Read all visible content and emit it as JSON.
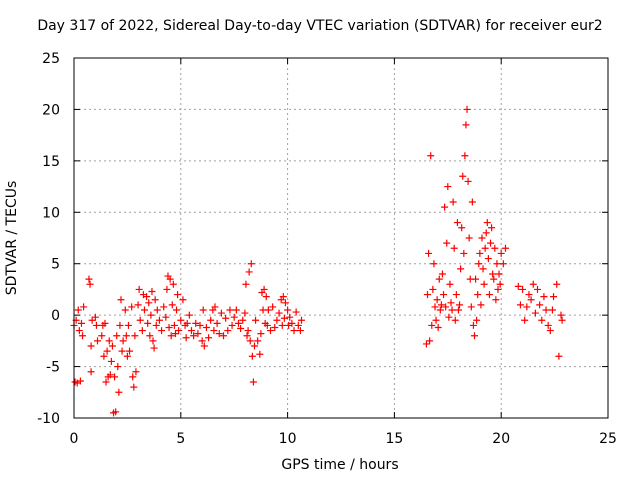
{
  "chart_data": {
    "type": "scatter",
    "title": "Day 317 of 2022, Sidereal Day-to-day VTEC variation (SDTVAR) for receiver eur2",
    "xlabel": "GPS time / hours",
    "ylabel": "SDTVAR / TECUs",
    "xlim": [
      0,
      25
    ],
    "ylim": [
      -10,
      25
    ],
    "xticks": [
      "0",
      "5",
      "10",
      "15",
      "20",
      "25"
    ],
    "yticks": [
      "-10",
      "-5",
      "0",
      "5",
      "10",
      "15",
      "20",
      "25"
    ],
    "grid": true,
    "legend": "none",
    "marker": "plus",
    "series_color": "#ff0000",
    "series": [
      {
        "name": "SDTVAR",
        "points": [
          [
            0.0,
            -1.0
          ],
          [
            0.05,
            -6.5
          ],
          [
            0.1,
            -0.5
          ],
          [
            0.15,
            -6.6
          ],
          [
            0.2,
            0.5
          ],
          [
            0.25,
            -1.5
          ],
          [
            0.3,
            -6.4
          ],
          [
            0.35,
            -0.8
          ],
          [
            0.4,
            -2.0
          ],
          [
            0.45,
            0.8
          ],
          [
            0.7,
            3.5
          ],
          [
            0.75,
            3.0
          ],
          [
            0.8,
            -3.0
          ],
          [
            0.8,
            -5.5
          ],
          [
            0.85,
            -0.5
          ],
          [
            1.0,
            -0.2
          ],
          [
            1.05,
            -1.0
          ],
          [
            1.1,
            -2.5
          ],
          [
            1.3,
            -2.0
          ],
          [
            1.35,
            -1.0
          ],
          [
            1.4,
            -4.0
          ],
          [
            1.45,
            -0.8
          ],
          [
            1.5,
            -6.5
          ],
          [
            1.55,
            -3.5
          ],
          [
            1.6,
            -6.0
          ],
          [
            1.65,
            -2.5
          ],
          [
            1.7,
            -5.8
          ],
          [
            1.75,
            -4.5
          ],
          [
            1.8,
            -3.0
          ],
          [
            1.85,
            -9.5
          ],
          [
            1.9,
            -6.0
          ],
          [
            1.95,
            -9.4
          ],
          [
            2.0,
            -2.0
          ],
          [
            2.05,
            -5.0
          ],
          [
            2.1,
            -7.5
          ],
          [
            2.15,
            -1.0
          ],
          [
            2.2,
            1.5
          ],
          [
            2.25,
            -3.5
          ],
          [
            2.3,
            -2.5
          ],
          [
            2.4,
            0.5
          ],
          [
            2.45,
            -2.0
          ],
          [
            2.5,
            -4.0
          ],
          [
            2.55,
            -1.0
          ],
          [
            2.6,
            -3.5
          ],
          [
            2.7,
            0.8
          ],
          [
            2.75,
            -6.0
          ],
          [
            2.8,
            -7.0
          ],
          [
            2.85,
            -2.0
          ],
          [
            2.9,
            -5.5
          ],
          [
            3.0,
            1.0
          ],
          [
            3.05,
            2.5
          ],
          [
            3.1,
            -0.5
          ],
          [
            3.2,
            -1.5
          ],
          [
            3.25,
            2.0
          ],
          [
            3.3,
            0.5
          ],
          [
            3.4,
            1.8
          ],
          [
            3.45,
            -0.8
          ],
          [
            3.5,
            1.2
          ],
          [
            3.55,
            -2.0
          ],
          [
            3.6,
            0.0
          ],
          [
            3.65,
            2.3
          ],
          [
            3.7,
            -2.5
          ],
          [
            3.75,
            -3.2
          ],
          [
            3.8,
            1.5
          ],
          [
            3.85,
            -1.0
          ],
          [
            3.9,
            0.5
          ],
          [
            4.0,
            -0.5
          ],
          [
            4.1,
            -1.5
          ],
          [
            4.2,
            0.8
          ],
          [
            4.3,
            -0.2
          ],
          [
            4.35,
            2.5
          ],
          [
            4.4,
            3.8
          ],
          [
            4.45,
            -1.2
          ],
          [
            4.5,
            3.5
          ],
          [
            4.55,
            -2.0
          ],
          [
            4.6,
            1.0
          ],
          [
            4.65,
            3.0
          ],
          [
            4.7,
            -1.0
          ],
          [
            4.75,
            -1.8
          ],
          [
            4.8,
            0.5
          ],
          [
            4.85,
            2.0
          ],
          [
            4.9,
            -1.5
          ],
          [
            5.0,
            -0.5
          ],
          [
            5.1,
            1.5
          ],
          [
            5.2,
            -1.0
          ],
          [
            5.25,
            -2.2
          ],
          [
            5.3,
            -0.8
          ],
          [
            5.4,
            0.0
          ],
          [
            5.5,
            -1.5
          ],
          [
            5.6,
            -2.0
          ],
          [
            5.7,
            -0.8
          ],
          [
            5.8,
            -1.8
          ],
          [
            5.9,
            -1.0
          ],
          [
            6.0,
            -2.5
          ],
          [
            6.05,
            0.5
          ],
          [
            6.1,
            -3.0
          ],
          [
            6.2,
            -1.2
          ],
          [
            6.3,
            -2.2
          ],
          [
            6.4,
            -0.5
          ],
          [
            6.5,
            0.5
          ],
          [
            6.55,
            -1.5
          ],
          [
            6.6,
            0.8
          ],
          [
            6.7,
            -0.8
          ],
          [
            6.8,
            -1.8
          ],
          [
            6.9,
            0.2
          ],
          [
            7.0,
            -2.0
          ],
          [
            7.1,
            -0.3
          ],
          [
            7.2,
            -1.5
          ],
          [
            7.3,
            0.5
          ],
          [
            7.4,
            -1.0
          ],
          [
            7.5,
            -0.2
          ],
          [
            7.6,
            0.5
          ],
          [
            7.7,
            -0.8
          ],
          [
            7.8,
            -1.3
          ],
          [
            7.9,
            -0.5
          ],
          [
            8.0,
            0.2
          ],
          [
            8.05,
            3.0
          ],
          [
            8.1,
            -2.0
          ],
          [
            8.15,
            -1.5
          ],
          [
            8.2,
            4.2
          ],
          [
            8.25,
            -2.5
          ],
          [
            8.3,
            5.0
          ],
          [
            8.35,
            -4.0
          ],
          [
            8.4,
            -6.5
          ],
          [
            8.45,
            -3.0
          ],
          [
            8.5,
            -0.5
          ],
          [
            8.6,
            -2.5
          ],
          [
            8.7,
            -3.8
          ],
          [
            8.75,
            -1.8
          ],
          [
            8.8,
            2.2
          ],
          [
            8.85,
            0.5
          ],
          [
            8.9,
            2.5
          ],
          [
            8.95,
            -0.8
          ],
          [
            9.0,
            1.8
          ],
          [
            9.05,
            -1.0
          ],
          [
            9.1,
            0.5
          ],
          [
            9.2,
            -1.5
          ],
          [
            9.3,
            0.8
          ],
          [
            9.4,
            -1.2
          ],
          [
            9.5,
            -0.5
          ],
          [
            9.6,
            0.2
          ],
          [
            9.7,
            1.5
          ],
          [
            9.75,
            -1.0
          ],
          [
            9.8,
            1.8
          ],
          [
            9.85,
            -0.3
          ],
          [
            9.9,
            1.2
          ],
          [
            10.0,
            0.5
          ],
          [
            10.05,
            -1.0
          ],
          [
            10.1,
            -0.2
          ],
          [
            10.2,
            -0.8
          ],
          [
            10.3,
            -1.5
          ],
          [
            10.4,
            0.3
          ],
          [
            10.5,
            -1.0
          ],
          [
            10.6,
            -1.5
          ],
          [
            10.65,
            -0.5
          ],
          [
            16.5,
            -2.8
          ],
          [
            16.55,
            2.0
          ],
          [
            16.6,
            6.0
          ],
          [
            16.65,
            -2.5
          ],
          [
            16.7,
            15.5
          ],
          [
            16.75,
            -1.0
          ],
          [
            16.8,
            2.5
          ],
          [
            16.85,
            5.0
          ],
          [
            16.9,
            0.8
          ],
          [
            16.95,
            -0.5
          ],
          [
            17.0,
            1.5
          ],
          [
            17.05,
            -1.2
          ],
          [
            17.1,
            3.5
          ],
          [
            17.15,
            0.5
          ],
          [
            17.2,
            1.0
          ],
          [
            17.25,
            4.0
          ],
          [
            17.3,
            2.0
          ],
          [
            17.35,
            10.5
          ],
          [
            17.4,
            0.8
          ],
          [
            17.45,
            7.0
          ],
          [
            17.5,
            12.5
          ],
          [
            17.55,
            -0.2
          ],
          [
            17.6,
            3.0
          ],
          [
            17.65,
            1.2
          ],
          [
            17.7,
            0.5
          ],
          [
            17.75,
            11.0
          ],
          [
            17.8,
            6.5
          ],
          [
            17.85,
            -0.5
          ],
          [
            17.9,
            2.0
          ],
          [
            17.95,
            9.0
          ],
          [
            18.0,
            0.5
          ],
          [
            18.05,
            1.0
          ],
          [
            18.1,
            4.5
          ],
          [
            18.15,
            8.5
          ],
          [
            18.2,
            13.5
          ],
          [
            18.25,
            6.0
          ],
          [
            18.3,
            15.5
          ],
          [
            18.35,
            18.5
          ],
          [
            18.4,
            20.0
          ],
          [
            18.45,
            13.0
          ],
          [
            18.5,
            7.5
          ],
          [
            18.55,
            3.5
          ],
          [
            18.6,
            0.8
          ],
          [
            18.65,
            11.0
          ],
          [
            18.7,
            -1.0
          ],
          [
            18.75,
            -2.0
          ],
          [
            18.8,
            3.5
          ],
          [
            18.85,
            -0.5
          ],
          [
            18.9,
            2.0
          ],
          [
            18.95,
            5.0
          ],
          [
            19.0,
            6.0
          ],
          [
            19.05,
            1.0
          ],
          [
            19.1,
            7.5
          ],
          [
            19.15,
            4.5
          ],
          [
            19.2,
            3.0
          ],
          [
            19.25,
            6.5
          ],
          [
            19.3,
            8.0
          ],
          [
            19.35,
            9.0
          ],
          [
            19.4,
            5.5
          ],
          [
            19.45,
            2.0
          ],
          [
            19.5,
            7.0
          ],
          [
            19.55,
            8.5
          ],
          [
            19.6,
            4.0
          ],
          [
            19.65,
            3.5
          ],
          [
            19.7,
            6.5
          ],
          [
            19.75,
            1.5
          ],
          [
            19.8,
            5.0
          ],
          [
            19.85,
            2.5
          ],
          [
            19.9,
            4.0
          ],
          [
            19.95,
            3.0
          ],
          [
            20.0,
            6.0
          ],
          [
            20.1,
            5.0
          ],
          [
            20.2,
            6.5
          ],
          [
            20.8,
            2.8
          ],
          [
            20.9,
            1.0
          ],
          [
            21.0,
            2.5
          ],
          [
            21.1,
            -0.5
          ],
          [
            21.2,
            0.8
          ],
          [
            21.3,
            2.0
          ],
          [
            21.4,
            1.5
          ],
          [
            21.5,
            3.0
          ],
          [
            21.6,
            0.2
          ],
          [
            21.7,
            2.5
          ],
          [
            21.8,
            1.0
          ],
          [
            21.9,
            -0.5
          ],
          [
            22.0,
            1.8
          ],
          [
            22.1,
            0.5
          ],
          [
            22.2,
            -1.0
          ],
          [
            22.3,
            -1.5
          ],
          [
            22.4,
            0.5
          ],
          [
            22.45,
            1.8
          ],
          [
            22.6,
            3.0
          ],
          [
            22.7,
            -4.0
          ],
          [
            22.8,
            0.0
          ],
          [
            22.85,
            -0.5
          ]
        ]
      }
    ]
  }
}
